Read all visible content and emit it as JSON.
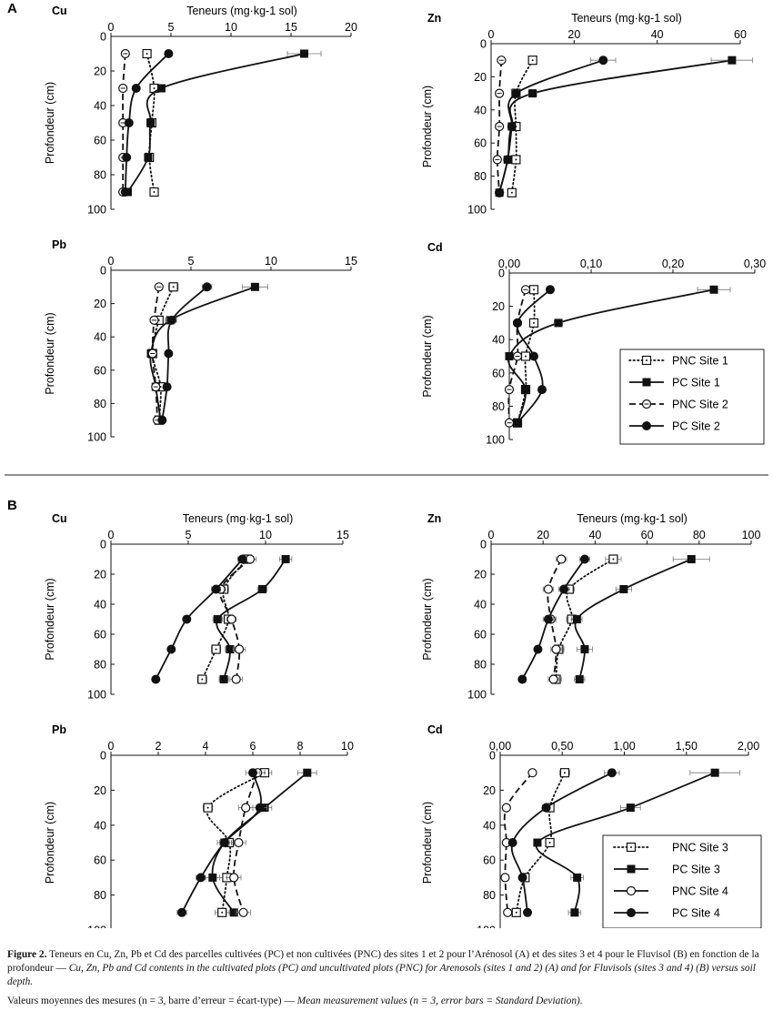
{
  "sections": [
    {
      "label": "A",
      "legend": [
        "PNC Site 1",
        "PC Site 1",
        "PNC Site 2",
        "PC Site 2"
      ]
    },
    {
      "label": "B",
      "legend": [
        "PNC Site 3",
        "PC Site 3",
        "PNC Site 4",
        "PC Site 4"
      ]
    }
  ],
  "chart_data": [
    {
      "type": "line",
      "section": "A",
      "title": "Cu",
      "xlabel": "Teneurs (mg·kg-1 sol)",
      "ylabel": "Profondeur (cm)",
      "xlim": [
        0,
        20
      ],
      "xticks": [
        "0",
        "5",
        "10",
        "15",
        "20"
      ],
      "ylim": [
        0,
        100
      ],
      "yticks": [
        "0",
        "20",
        "40",
        "60",
        "80",
        "100"
      ],
      "series": [
        {
          "name": "PNC Site 1",
          "style": "pnc1",
          "x": [
            3.0,
            3.6,
            3.4,
            3.2,
            3.6
          ],
          "y": [
            10,
            30,
            50,
            70,
            90
          ],
          "err": [
            0.3,
            0.3,
            0.2,
            0.2,
            0.2
          ]
        },
        {
          "name": "PC Site 1",
          "style": "pc1",
          "x": [
            16.1,
            4.2,
            3.3,
            3.1,
            1.4
          ],
          "y": [
            10,
            30,
            50,
            70,
            90
          ],
          "err": [
            1.4,
            0.3,
            0.2,
            0.2,
            0.1
          ]
        },
        {
          "name": "PNC Site 2",
          "style": "pnc2",
          "x": [
            1.2,
            1.0,
            1.0,
            1.0,
            1.0
          ],
          "y": [
            10,
            30,
            50,
            70,
            90
          ],
          "err": [
            0.1,
            0.1,
            0.1,
            0.1,
            0.1
          ]
        },
        {
          "name": "PC Site 2",
          "style": "pc2",
          "x": [
            4.8,
            2.1,
            1.5,
            1.3,
            1.2
          ],
          "y": [
            10,
            30,
            50,
            70,
            90
          ],
          "err": [
            0.3,
            0.2,
            0.1,
            0.1,
            0.1
          ]
        }
      ]
    },
    {
      "type": "line",
      "section": "A",
      "title": "Zn",
      "xlabel": "Teneurs (mg·kg-1 sol)",
      "ylabel": "Profondeur (cm)",
      "xlim": [
        0,
        60
      ],
      "xticks": [
        "0",
        "20",
        "40",
        "60"
      ],
      "ylim": [
        0,
        100
      ],
      "yticks": [
        "0",
        "20",
        "40",
        "60",
        "80",
        "100"
      ],
      "series": [
        {
          "name": "PNC Site 1",
          "style": "pnc1",
          "x": [
            10,
            6,
            6,
            6,
            5
          ],
          "y": [
            10,
            30,
            50,
            70,
            90
          ],
          "err": [
            0.8,
            0.5,
            0.5,
            0.5,
            0.5
          ]
        },
        {
          "name": "PC Site 1",
          "style": "pc1",
          "x": [
            58,
            10,
            5,
            4,
            2
          ],
          "y": [
            10,
            30,
            50,
            70,
            90
          ],
          "err": [
            5,
            1,
            0.5,
            0.5,
            0.3
          ]
        },
        {
          "name": "PNC Site 2",
          "style": "pnc2",
          "x": [
            2.5,
            2.0,
            2.0,
            1.5,
            2.0
          ],
          "y": [
            10,
            30,
            50,
            70,
            90
          ],
          "err": [
            0.3,
            0.3,
            0.3,
            0.3,
            0.3
          ]
        },
        {
          "name": "PC Site 2",
          "style": "pc2",
          "x": [
            27,
            6,
            5,
            4,
            2
          ],
          "y": [
            10,
            30,
            50,
            70,
            90
          ],
          "err": [
            3,
            0.5,
            0.5,
            0.5,
            0.3
          ]
        }
      ]
    },
    {
      "type": "line",
      "section": "A",
      "title": "Pb",
      "xlabel": "",
      "ylabel": "Profondeur (cm)",
      "xlim": [
        0,
        15
      ],
      "xticks": [
        "0",
        "5",
        "10",
        "15"
      ],
      "ylim": [
        0,
        100
      ],
      "yticks": [
        "0",
        "20",
        "40",
        "60",
        "80",
        "100"
      ],
      "series": [
        {
          "name": "PNC Site 1",
          "style": "pnc1",
          "x": [
            3.9,
            3.0,
            2.6,
            3.1,
            3.0
          ],
          "y": [
            10,
            30,
            50,
            70,
            90
          ],
          "err": [
            0.3,
            0.2,
            0.2,
            0.2,
            0.2
          ]
        },
        {
          "name": "PC Site 1",
          "style": "pc1",
          "x": [
            9.0,
            3.7,
            2.5,
            2.8,
            3.1
          ],
          "y": [
            10,
            30,
            50,
            70,
            90
          ],
          "err": [
            0.8,
            0.3,
            0.2,
            0.2,
            0.2
          ]
        },
        {
          "name": "PNC Site 2",
          "style": "pnc2",
          "x": [
            3.0,
            2.7,
            2.6,
            2.8,
            2.9
          ],
          "y": [
            10,
            30,
            50,
            70,
            90
          ],
          "err": [
            0.2,
            0.2,
            0.2,
            0.2,
            0.2
          ]
        },
        {
          "name": "PC Site 2",
          "style": "pc2",
          "x": [
            6.0,
            3.8,
            3.6,
            3.5,
            3.2
          ],
          "y": [
            10,
            30,
            50,
            70,
            90
          ],
          "err": [
            0.3,
            0.3,
            0.2,
            0.2,
            0.2
          ]
        }
      ]
    },
    {
      "type": "line",
      "section": "A",
      "title": "Cd",
      "xlabel": "",
      "ylabel": "Profondeur (cm)",
      "xlim": [
        0,
        0.3
      ],
      "xticks": [
        "0,00",
        "0,10",
        "0,20",
        "0,30"
      ],
      "ylim": [
        0,
        100
      ],
      "yticks": [
        "0",
        "20",
        "40",
        "60",
        "80",
        "100"
      ],
      "series": [
        {
          "name": "PNC Site 1",
          "style": "pnc1",
          "x": [
            0.03,
            0.03,
            0.02,
            0.02,
            0.01
          ],
          "y": [
            10,
            30,
            50,
            70,
            90
          ],
          "err": [
            0.004,
            0.003,
            0.003,
            0.003,
            0.002
          ]
        },
        {
          "name": "PC Site 1",
          "style": "pc1",
          "x": [
            0.25,
            0.06,
            0.0,
            0.02,
            0.01
          ],
          "y": [
            10,
            30,
            50,
            70,
            90
          ],
          "err": [
            0.02,
            0.005,
            0.002,
            0.003,
            0.002
          ]
        },
        {
          "name": "PNC Site 2",
          "style": "pnc2",
          "x": [
            0.02,
            0.01,
            0.01,
            0.0,
            0.0
          ],
          "y": [
            10,
            30,
            50,
            70,
            90
          ],
          "err": [
            0.003,
            0.002,
            0.002,
            0.002,
            0.002
          ]
        },
        {
          "name": "PC Site 2",
          "style": "pc2",
          "x": [
            0.05,
            0.01,
            0.03,
            0.04,
            0.01
          ],
          "y": [
            10,
            30,
            50,
            70,
            90
          ],
          "err": [
            0.004,
            0.002,
            0.003,
            0.003,
            0.002
          ]
        }
      ]
    },
    {
      "type": "line",
      "section": "B",
      "title": "Cu",
      "xlabel": "Teneurs (mg·kg-1 sol)",
      "ylabel": "Profondeur (cm)",
      "xlim": [
        0,
        15
      ],
      "xticks": [
        "0",
        "5",
        "10",
        "15"
      ],
      "ylim": [
        0,
        100
      ],
      "yticks": [
        "0",
        "20",
        "40",
        "60",
        "80",
        "100"
      ],
      "series": [
        {
          "name": "PNC Site 3",
          "style": "pnc1",
          "x": [
            8.8,
            7.3,
            7.6,
            6.8,
            5.9
          ],
          "y": [
            10,
            30,
            50,
            70,
            90
          ],
          "err": [
            0.3,
            0.3,
            0.3,
            0.3,
            0.3
          ]
        },
        {
          "name": "PC Site 3",
          "style": "pc1",
          "x": [
            11.3,
            9.8,
            6.9,
            7.7,
            7.3
          ],
          "y": [
            10,
            30,
            50,
            70,
            90
          ],
          "err": [
            0.4,
            0.3,
            0.3,
            0.3,
            0.3
          ]
        },
        {
          "name": "PNC Site 4",
          "style": "pnc2",
          "x": [
            9.0,
            7.1,
            7.8,
            8.3,
            8.1
          ],
          "y": [
            10,
            30,
            50,
            70,
            90
          ],
          "err": [
            0.4,
            0.3,
            0.3,
            0.4,
            0.4
          ]
        },
        {
          "name": "PC Site 4",
          "style": "pc2",
          "x": [
            8.5,
            6.8,
            4.9,
            3.9,
            2.9
          ],
          "y": [
            10,
            30,
            50,
            70,
            90
          ],
          "err": [
            0.3,
            0.3,
            0.2,
            0.2,
            0.2
          ]
        }
      ]
    },
    {
      "type": "line",
      "section": "B",
      "title": "Zn",
      "xlabel": "Teneurs (mg·kg-1 sol)",
      "ylabel": "Profondeur (cm)",
      "xlim": [
        0,
        100
      ],
      "xticks": [
        "0",
        "20",
        "40",
        "60",
        "80",
        "100"
      ],
      "ylim": [
        0,
        100
      ],
      "yticks": [
        "0",
        "20",
        "40",
        "60",
        "80",
        "100"
      ],
      "series": [
        {
          "name": "PNC Site 3",
          "style": "pnc1",
          "x": [
            47,
            30,
            31,
            26,
            25
          ],
          "y": [
            10,
            30,
            50,
            70,
            90
          ],
          "err": [
            3,
            2,
            2,
            2,
            2
          ]
        },
        {
          "name": "PC Site 3",
          "style": "pc1",
          "x": [
            77,
            51,
            33,
            36,
            34
          ],
          "y": [
            10,
            30,
            50,
            70,
            90
          ],
          "err": [
            7,
            3,
            2,
            3,
            2
          ]
        },
        {
          "name": "PNC Site 4",
          "style": "pnc2",
          "x": [
            27,
            22,
            23,
            25,
            24
          ],
          "y": [
            10,
            30,
            50,
            70,
            90
          ],
          "err": [
            2,
            2,
            2,
            2,
            2
          ]
        },
        {
          "name": "PC Site 4",
          "style": "pc2",
          "x": [
            36,
            28,
            22,
            18,
            12
          ],
          "y": [
            10,
            30,
            50,
            70,
            90
          ],
          "err": [
            2,
            2,
            2,
            1,
            1
          ]
        }
      ]
    },
    {
      "type": "line",
      "section": "B",
      "title": "Pb",
      "xlabel": "",
      "ylabel": "Profondeur (cm)",
      "xlim": [
        0,
        10
      ],
      "xticks": [
        "0",
        "2",
        "4",
        "6",
        "8",
        "10"
      ],
      "ylim": [
        0,
        100
      ],
      "yticks": [
        "0",
        "20",
        "40",
        "60",
        "80",
        "100"
      ],
      "series": [
        {
          "name": "PNC Site 3",
          "style": "pnc1",
          "x": [
            6.5,
            4.1,
            5.0,
            4.9,
            4.7
          ],
          "y": [
            10,
            30,
            50,
            70,
            90
          ],
          "err": [
            0.3,
            0.2,
            0.2,
            0.3,
            0.3
          ]
        },
        {
          "name": "PC Site 3",
          "style": "pc1",
          "x": [
            8.3,
            6.5,
            4.8,
            4.3,
            5.2
          ],
          "y": [
            10,
            30,
            50,
            70,
            90
          ],
          "err": [
            0.4,
            0.3,
            0.3,
            0.3,
            0.3
          ]
        },
        {
          "name": "PNC Site 4",
          "style": "pnc2",
          "x": [
            6.2,
            5.7,
            5.4,
            5.2,
            5.6
          ],
          "y": [
            10,
            30,
            50,
            70,
            90
          ],
          "err": [
            0.3,
            0.3,
            0.3,
            0.3,
            0.3
          ]
        },
        {
          "name": "PC Site 4",
          "style": "pc2",
          "x": [
            6.0,
            6.3,
            4.8,
            3.8,
            3.0
          ],
          "y": [
            10,
            30,
            50,
            70,
            90
          ],
          "err": [
            0.3,
            0.3,
            0.2,
            0.2,
            0.2
          ]
        }
      ]
    },
    {
      "type": "line",
      "section": "B",
      "title": "Cd",
      "xlabel": "",
      "ylabel": "Profondeur (cm)",
      "xlim": [
        0,
        2
      ],
      "xticks": [
        "0,00",
        "0,50",
        "1,00",
        "1,50",
        "2,00"
      ],
      "ylim": [
        0,
        100
      ],
      "yticks": [
        "0",
        "20",
        "40",
        "60",
        "80",
        "100"
      ],
      "series": [
        {
          "name": "PNC Site 3",
          "style": "pnc1",
          "x": [
            0.52,
            0.4,
            0.4,
            0.2,
            0.13
          ],
          "y": [
            10,
            30,
            50,
            70,
            90
          ],
          "err": [
            0.04,
            0.03,
            0.03,
            0.02,
            0.02
          ]
        },
        {
          "name": "PC Site 3",
          "style": "pc1",
          "x": [
            1.73,
            1.05,
            0.3,
            0.62,
            0.6
          ],
          "y": [
            10,
            30,
            50,
            70,
            90
          ],
          "err": [
            0.2,
            0.08,
            0.03,
            0.05,
            0.05
          ]
        },
        {
          "name": "PNC Site 4",
          "style": "pnc2",
          "x": [
            0.26,
            0.05,
            0.05,
            0.04,
            0.06
          ],
          "y": [
            10,
            30,
            50,
            70,
            90
          ],
          "err": [
            0.02,
            0.01,
            0.01,
            0.01,
            0.01
          ]
        },
        {
          "name": "PC Site 4",
          "style": "pc2",
          "x": [
            0.9,
            0.37,
            0.1,
            0.18,
            0.22
          ],
          "y": [
            10,
            30,
            50,
            70,
            90
          ],
          "err": [
            0.06,
            0.03,
            0.01,
            0.02,
            0.02
          ]
        }
      ]
    }
  ],
  "caption": {
    "fig_label": "Figure 2.",
    "fr": " Teneurs en Cu, Zn, Pb et Cd des parcelles cultivées (PC) et non cultivées (PNC) des sites 1 et 2 pour l’Arénosol (A) et des sites 3 et 4 pour le Fluvisol (B) en fonction de la profondeur — ",
    "en": "Cu, Zn, Pb and Cd contents in the cultivated plots (PC) and uncultivated plots (PNC) for Arenosols (sites 1 and 2) (A) and for Fluvisols (sites 3 and 4) (B) versus soil depth.",
    "note_fr": "Valeurs moyennes des mesures (n = 3, barre d’erreur = écart-type) — ",
    "note_en": "Mean measurement values (n = 3, error bars = Standard Deviation)."
  }
}
